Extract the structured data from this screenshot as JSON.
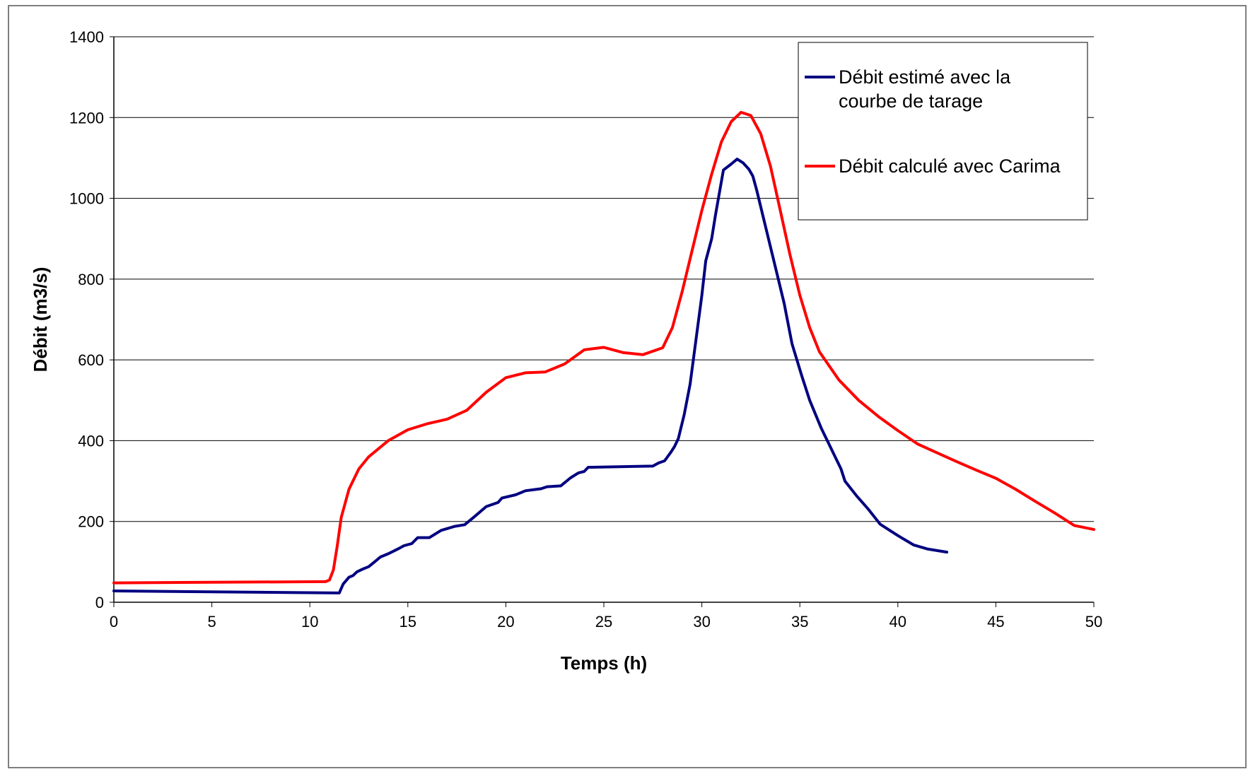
{
  "chart_data": {
    "type": "line",
    "xlabel": "Temps (h)",
    "ylabel": "Débit (m3/s)",
    "xlim": [
      0,
      50
    ],
    "ylim": [
      0,
      1400
    ],
    "x_ticks": [
      0,
      5,
      10,
      15,
      20,
      25,
      30,
      35,
      40,
      45,
      50
    ],
    "y_ticks": [
      0,
      200,
      400,
      600,
      800,
      1000,
      1200,
      1400
    ],
    "grid": "horizontal",
    "legend_position": "top-right",
    "legend": [
      "Débit estimé avec la courbe de tarage",
      "Débit calculé avec Carima"
    ],
    "series": [
      {
        "name": "Débit estimé avec la courbe de tarage",
        "color": "#000080",
        "points": [
          [
            0,
            28
          ],
          [
            11.5,
            23
          ],
          [
            11.7,
            45
          ],
          [
            12,
            62
          ],
          [
            12.2,
            66
          ],
          [
            12.4,
            75
          ],
          [
            12.7,
            82
          ],
          [
            13,
            88
          ],
          [
            13.3,
            100
          ],
          [
            13.6,
            112
          ],
          [
            14,
            120
          ],
          [
            14.5,
            132
          ],
          [
            14.8,
            140
          ],
          [
            15.2,
            145
          ],
          [
            15.5,
            160
          ],
          [
            16.1,
            160
          ],
          [
            16.7,
            178
          ],
          [
            17.4,
            188
          ],
          [
            17.9,
            192
          ],
          [
            18.4,
            212
          ],
          [
            19,
            237
          ],
          [
            19.6,
            247
          ],
          [
            19.8,
            258
          ],
          [
            20.5,
            266
          ],
          [
            21,
            276
          ],
          [
            21.8,
            281
          ],
          [
            22.1,
            286
          ],
          [
            22.8,
            288
          ],
          [
            23.3,
            308
          ],
          [
            23.7,
            320
          ],
          [
            24,
            324
          ],
          [
            24.2,
            334
          ],
          [
            27.5,
            337
          ],
          [
            27.8,
            345
          ],
          [
            28.1,
            350
          ],
          [
            28.4,
            370
          ],
          [
            28.6,
            385
          ],
          [
            28.8,
            405
          ],
          [
            29.1,
            465
          ],
          [
            29.4,
            540
          ],
          [
            29.7,
            650
          ],
          [
            30,
            760
          ],
          [
            30.2,
            845
          ],
          [
            30.5,
            900
          ],
          [
            30.7,
            960
          ],
          [
            31.1,
            1070
          ],
          [
            31.5,
            1085
          ],
          [
            31.8,
            1097
          ],
          [
            32.1,
            1088
          ],
          [
            32.4,
            1072
          ],
          [
            32.6,
            1055
          ],
          [
            32.8,
            1020
          ],
          [
            33.1,
            960
          ],
          [
            33.6,
            860
          ],
          [
            34.2,
            740
          ],
          [
            34.6,
            640
          ],
          [
            35.1,
            560
          ],
          [
            35.5,
            500
          ],
          [
            36.1,
            430
          ],
          [
            36.6,
            380
          ],
          [
            37.1,
            330
          ],
          [
            37.3,
            300
          ],
          [
            37.9,
            263
          ],
          [
            38.5,
            230
          ],
          [
            39.1,
            193
          ],
          [
            40,
            165
          ],
          [
            40.8,
            142
          ],
          [
            41.5,
            132
          ],
          [
            42.5,
            124
          ]
        ]
      },
      {
        "name": "Débit calculé avec Carima",
        "color": "#ff0000",
        "points": [
          [
            0,
            48
          ],
          [
            10.5,
            51
          ],
          [
            10.8,
            51
          ],
          [
            11,
            55
          ],
          [
            11.2,
            80
          ],
          [
            11.4,
            140
          ],
          [
            11.6,
            210
          ],
          [
            12,
            280
          ],
          [
            12.5,
            330
          ],
          [
            13,
            360
          ],
          [
            14,
            400
          ],
          [
            15,
            427
          ],
          [
            16,
            442
          ],
          [
            17,
            453
          ],
          [
            18,
            475
          ],
          [
            19,
            520
          ],
          [
            20,
            556
          ],
          [
            21,
            568
          ],
          [
            22,
            570
          ],
          [
            23,
            590
          ],
          [
            24,
            625
          ],
          [
            25,
            631
          ],
          [
            26,
            618
          ],
          [
            27,
            613
          ],
          [
            28,
            630
          ],
          [
            28.5,
            680
          ],
          [
            29,
            770
          ],
          [
            29.5,
            870
          ],
          [
            30,
            970
          ],
          [
            30.5,
            1060
          ],
          [
            31,
            1140
          ],
          [
            31.5,
            1190
          ],
          [
            32,
            1213
          ],
          [
            32.5,
            1205
          ],
          [
            33,
            1160
          ],
          [
            33.5,
            1080
          ],
          [
            34,
            970
          ],
          [
            34.5,
            860
          ],
          [
            35,
            760
          ],
          [
            35.5,
            680
          ],
          [
            36,
            620
          ],
          [
            37,
            550
          ],
          [
            38,
            500
          ],
          [
            39,
            460
          ],
          [
            40,
            425
          ],
          [
            41,
            392
          ],
          [
            42,
            370
          ],
          [
            43,
            348
          ],
          [
            44,
            327
          ],
          [
            45,
            307
          ],
          [
            46,
            280
          ],
          [
            47,
            250
          ],
          [
            48,
            221
          ],
          [
            49,
            190
          ],
          [
            50,
            180
          ]
        ]
      }
    ]
  }
}
